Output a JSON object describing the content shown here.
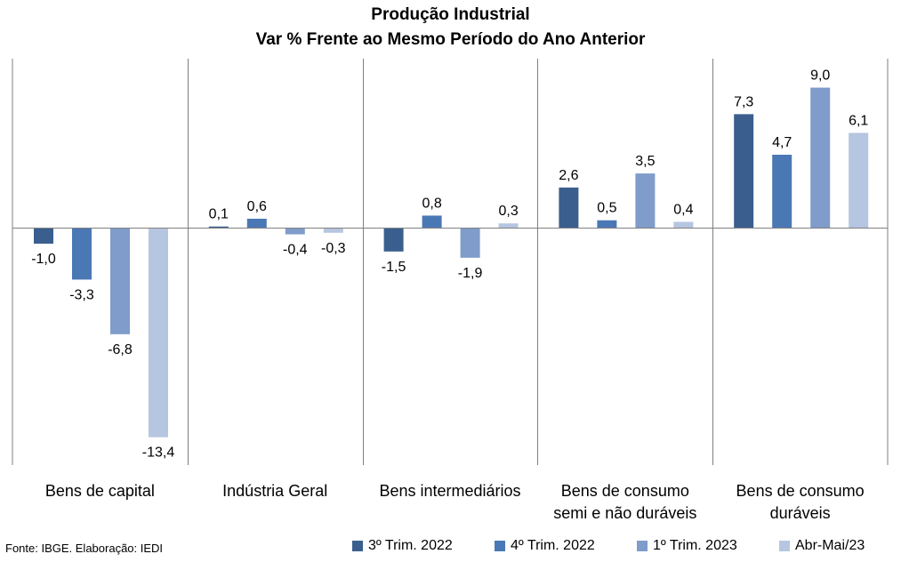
{
  "chart_data": {
    "type": "bar",
    "title": "Produção Industrial",
    "subtitle": "Var %  Frente ao Mesmo Período do Ano Anterior",
    "categories": [
      [
        "Bens de capital"
      ],
      [
        "Indústria Geral"
      ],
      [
        "Bens intermediários"
      ],
      [
        "Bens de consumo",
        "semi e não duráveis"
      ],
      [
        "Bens de consumo",
        "duráveis"
      ]
    ],
    "series": [
      {
        "name": "3º Trim. 2022",
        "color": "#3a5f8e",
        "values": [
          -1.0,
          0.1,
          -1.5,
          2.6,
          7.3
        ],
        "labels": [
          "-1,0",
          "0,1",
          "-1,5",
          "2,6",
          "7,3"
        ]
      },
      {
        "name": "4º Trim. 2022",
        "color": "#4a78b5",
        "values": [
          -3.3,
          0.6,
          0.8,
          0.5,
          4.7
        ],
        "labels": [
          "-3,3",
          "0,6",
          "0,8",
          "0,5",
          "4,7"
        ]
      },
      {
        "name": "1º Trim. 2023",
        "color": "#7f9ccb",
        "values": [
          -6.8,
          -0.4,
          -1.9,
          3.5,
          9.0
        ],
        "labels": [
          "-6,8",
          "-0,4",
          "-1,9",
          "3,5",
          "9,0"
        ]
      },
      {
        "name": "Abr-Mai/23",
        "color": "#b6c5e0",
        "values": [
          -13.4,
          -0.3,
          0.3,
          0.4,
          6.1
        ],
        "labels": [
          "-13,4",
          "-0,3",
          "0,3",
          "0,4",
          "6,1"
        ]
      }
    ],
    "grid": false,
    "legend_position": "bottom-right"
  },
  "source": "Fonte: IBGE. Elaboração: IEDI"
}
